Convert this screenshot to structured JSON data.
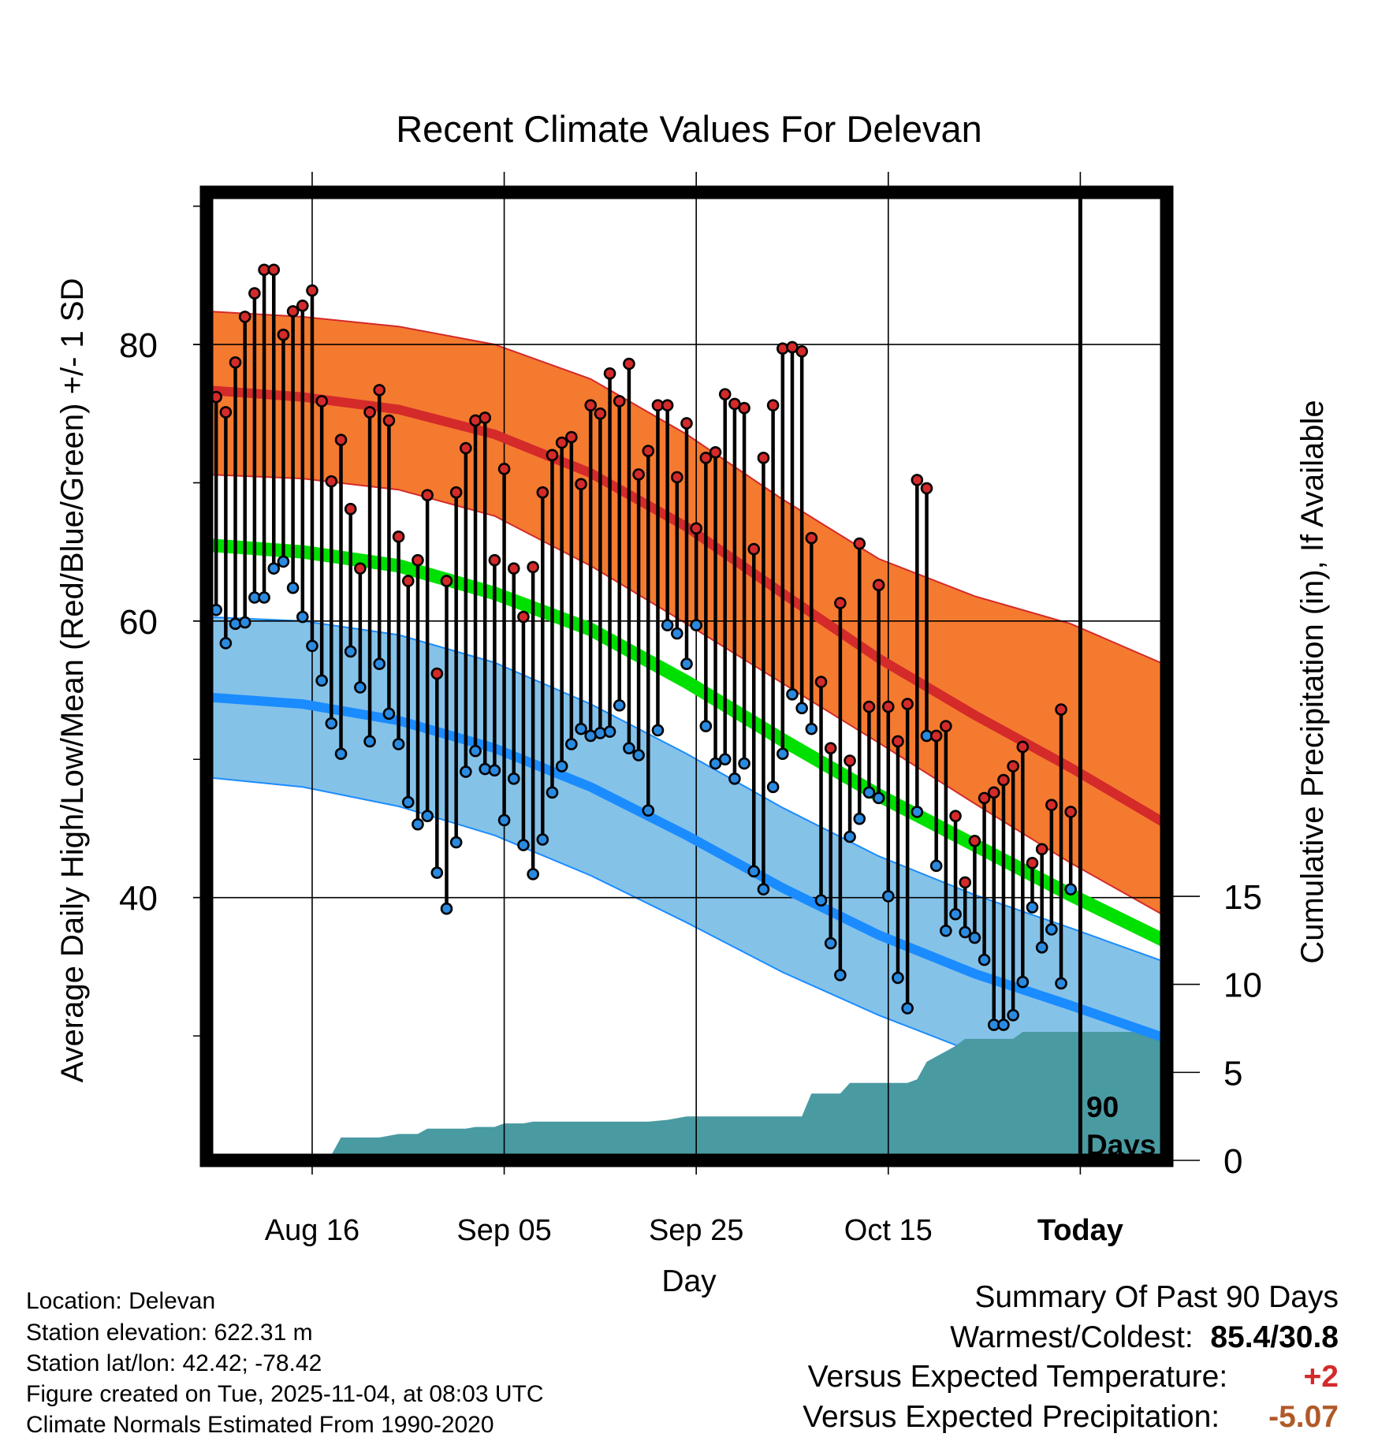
{
  "chart_data": {
    "type": "line",
    "title": "Recent Climate Values For Delevan",
    "xlabel": "Day",
    "ylabel": "Average Daily High/Low/Mean (Red/Blue/Green) +/- 1 SD",
    "y2label": "Cumulative Precipitation (in), If Available",
    "period_label": [
      "90",
      "Days"
    ],
    "x_range_days": [
      0,
      100
    ],
    "ylim": [
      21,
      91
    ],
    "y2lim": [
      0,
      55
    ],
    "y_ticks": [
      40,
      60,
      80
    ],
    "y_tick_labels": [
      "40",
      "60",
      "80"
    ],
    "y2_ticks": [
      0,
      5,
      10,
      15
    ],
    "y2_tick_labels": [
      "0",
      "5",
      "10",
      "15"
    ],
    "x_ticks": [
      {
        "day": 11,
        "label": "Aug 16"
      },
      {
        "day": 31,
        "label": "Sep 05"
      },
      {
        "day": 51,
        "label": "Sep 25"
      },
      {
        "day": 71,
        "label": "Oct 15"
      },
      {
        "day": 91,
        "label": "Today"
      }
    ],
    "colors": {
      "high_band": "#f47a30",
      "high_mean": "#d42a2a",
      "low_band": "#85c2e8",
      "low_mean": "#1a8cff",
      "mean": "#00e000",
      "precip": "#4a9aa2",
      "high_marker": "#d42a2a",
      "low_marker": "#2a8ae0"
    },
    "normals": {
      "days": [
        0,
        10,
        20,
        30,
        40,
        50,
        60,
        70,
        80,
        90,
        100
      ],
      "high_mean": [
        76.7,
        76.2,
        75.3,
        73.5,
        70.7,
        66.8,
        62.0,
        57.3,
        53.2,
        49.4,
        45.3
      ],
      "high_sd_upper": [
        82.4,
        82.0,
        81.3,
        80.0,
        77.5,
        73.5,
        68.8,
        64.5,
        61.8,
        59.8,
        56.8
      ],
      "high_sd_lower": [
        70.6,
        70.3,
        69.5,
        67.6,
        64.0,
        59.8,
        55.5,
        51.2,
        46.8,
        42.5,
        38.6
      ],
      "low_mean": [
        54.5,
        54.0,
        52.8,
        50.8,
        48.0,
        44.5,
        40.7,
        37.3,
        34.5,
        32.2,
        29.8
      ],
      "low_sd_upper": [
        60.3,
        60.0,
        59.0,
        57.0,
        54.0,
        50.4,
        46.5,
        43.0,
        40.2,
        37.8,
        35.3
      ],
      "low_sd_lower": [
        48.7,
        48.0,
        46.6,
        44.5,
        41.6,
        38.2,
        34.6,
        31.5,
        28.8,
        26.4,
        24.3
      ],
      "mean": [
        65.5,
        65.0,
        64.0,
        62.0,
        59.4,
        55.6,
        51.4,
        47.4,
        43.8,
        40.2,
        36.8
      ]
    },
    "series": [
      {
        "name": "Daily High",
        "values": [
          76.2,
          75.1,
          78.7,
          82.0,
          83.7,
          85.4,
          85.4,
          80.7,
          82.4,
          82.8,
          83.9,
          75.9,
          70.1,
          73.1,
          68.1,
          63.8,
          75.1,
          76.7,
          74.5,
          66.1,
          62.9,
          64.4,
          69.1,
          56.2,
          62.9,
          69.3,
          72.5,
          74.5,
          74.7,
          64.4,
          71.0,
          63.8,
          60.3,
          63.9,
          69.3,
          72.0,
          72.9,
          73.3,
          69.9,
          75.6,
          75.0,
          77.9,
          75.9,
          78.6,
          70.6,
          72.3,
          75.6,
          75.6,
          70.4,
          74.3,
          66.7,
          71.8,
          72.2,
          76.4,
          75.7,
          75.4,
          65.2,
          71.8,
          75.6,
          79.7,
          79.8,
          79.5,
          66.0,
          55.6,
          50.8,
          61.3,
          49.9,
          65.6,
          53.8,
          62.6,
          53.8,
          51.3,
          54.0,
          70.2,
          69.6,
          51.7,
          52.4,
          45.9,
          41.1,
          44.1,
          47.2,
          47.6,
          48.5,
          49.5,
          50.9,
          42.5,
          43.5,
          46.7,
          53.6,
          46.2
        ]
      },
      {
        "name": "Daily Low",
        "values": [
          60.8,
          58.4,
          59.8,
          59.9,
          61.7,
          61.7,
          63.8,
          64.3,
          62.4,
          60.3,
          58.2,
          55.7,
          52.6,
          50.4,
          57.8,
          55.2,
          51.3,
          56.9,
          53.3,
          51.1,
          46.9,
          45.3,
          45.9,
          41.8,
          39.2,
          44.0,
          49.1,
          50.6,
          49.3,
          49.2,
          45.6,
          48.6,
          43.8,
          41.7,
          44.2,
          47.6,
          49.5,
          51.1,
          52.2,
          51.7,
          51.9,
          52.0,
          53.9,
          50.8,
          50.3,
          46.3,
          52.1,
          59.7,
          59.1,
          56.9,
          59.7,
          52.4,
          49.7,
          50.0,
          48.6,
          49.7,
          41.9,
          40.6,
          48.0,
          50.4,
          54.7,
          53.7,
          52.2,
          39.8,
          36.7,
          34.4,
          44.4,
          45.7,
          47.6,
          47.2,
          40.1,
          34.2,
          32.0,
          46.2,
          51.7,
          42.3,
          37.6,
          38.8,
          37.5,
          37.1,
          35.5,
          30.8,
          30.8,
          31.5,
          33.9,
          39.3,
          36.4,
          37.7,
          33.8,
          40.6
        ]
      },
      {
        "name": "Cumulative Precipitation",
        "x": [
          11,
          13,
          14,
          15,
          16,
          17,
          18,
          19,
          20,
          21,
          22,
          23,
          24,
          25,
          26,
          27,
          28,
          29,
          30,
          31,
          32,
          33,
          34,
          35,
          36,
          37,
          38,
          40,
          42,
          44,
          46,
          48,
          50,
          52,
          54,
          56,
          58,
          60,
          62,
          63,
          64,
          65,
          66,
          67,
          68,
          69,
          70,
          71,
          72,
          73,
          74,
          75,
          76,
          77,
          78,
          79,
          80,
          81,
          82,
          83,
          84,
          85,
          86,
          87,
          88,
          89,
          90,
          91,
          92,
          93,
          94,
          95,
          96,
          97,
          98,
          99,
          100
        ],
        "values": [
          0.0,
          0.3,
          1.3,
          1.3,
          1.3,
          1.3,
          1.3,
          1.4,
          1.5,
          1.5,
          1.5,
          1.8,
          1.8,
          1.8,
          1.8,
          1.8,
          1.9,
          1.9,
          1.9,
          2.1,
          2.1,
          2.1,
          2.2,
          2.2,
          2.2,
          2.2,
          2.2,
          2.2,
          2.2,
          2.2,
          2.2,
          2.3,
          2.5,
          2.5,
          2.5,
          2.5,
          2.5,
          2.5,
          2.5,
          3.8,
          3.8,
          3.8,
          3.8,
          4.4,
          4.4,
          4.4,
          4.4,
          4.4,
          4.4,
          4.4,
          4.6,
          5.6,
          5.9,
          6.2,
          6.5,
          6.9,
          6.9,
          6.9,
          6.9,
          6.9,
          6.9,
          7.3,
          7.3,
          7.3,
          7.3,
          7.3,
          7.3,
          7.3,
          7.3,
          7.3,
          7.3,
          7.3,
          7.3,
          7.3,
          7.3,
          7.3,
          7.3
        ]
      }
    ]
  },
  "info": {
    "location": "Location: Delevan",
    "elevation": "Station elevation: 622.31 m",
    "latlon": "Station lat/lon: 42.42; -78.42",
    "created": "Figure created on Tue, 2025-11-04, at 08:03 UTC",
    "normals": "Climate Normals Estimated From 1990-2020"
  },
  "summary": {
    "title": "Summary Of Past 90 Days",
    "warmest_label": "Warmest/Coldest:",
    "warmest_value": "85.4/30.8",
    "temp_label": "Versus Expected Temperature:",
    "temp_value": "+2",
    "temp_color": "#d42a2a",
    "precip_label": "Versus Expected Precipitation:",
    "precip_value": "-5.07",
    "precip_color": "#b05a28"
  }
}
